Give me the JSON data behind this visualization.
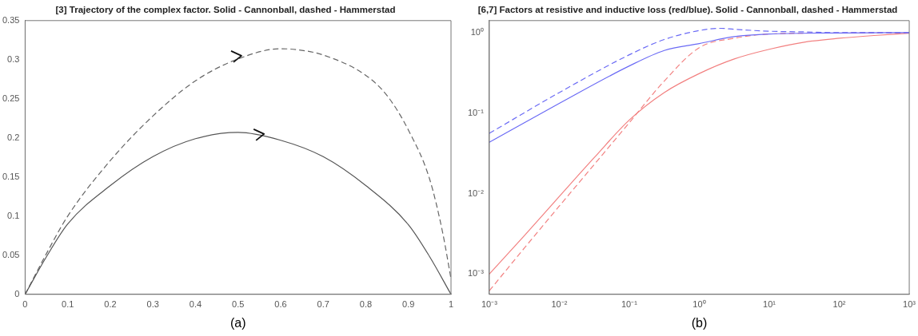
{
  "chart_data": [
    {
      "type": "line",
      "title": "[3] Trajectory of the complex factor. Solid - Cannonball, dashed - Hammerstad",
      "annotations": [
        "(a)"
      ],
      "xlim": [
        0,
        1
      ],
      "ylim": [
        0,
        0.35
      ],
      "xticks": [
        0,
        0.1,
        0.2,
        0.3,
        0.4,
        0.5,
        0.6,
        0.7,
        0.8,
        0.9,
        1
      ],
      "yticks": [
        0,
        0.05,
        0.1,
        0.15,
        0.2,
        0.25,
        0.3,
        0.35
      ],
      "marker": "none",
      "series": [
        {
          "color": "#555555",
          "line_style": "solid",
          "x": [
            0,
            0.05,
            0.1,
            0.2,
            0.3,
            0.4,
            0.5,
            0.6,
            0.7,
            0.8,
            0.9,
            0.95,
            1
          ],
          "values": [
            0,
            0.048,
            0.09,
            0.139,
            0.176,
            0.199,
            0.207,
            0.197,
            0.176,
            0.139,
            0.089,
            0.048,
            0
          ]
        },
        {
          "color": "#666666",
          "line_style": "dashed",
          "x": [
            0,
            0.05,
            0.1,
            0.2,
            0.3,
            0.4,
            0.5,
            0.6,
            0.65,
            0.7,
            0.8,
            0.85,
            0.9,
            0.95,
            0.98,
            1
          ],
          "values": [
            0,
            0.052,
            0.1,
            0.171,
            0.228,
            0.273,
            0.301,
            0.314,
            0.312,
            0.306,
            0.28,
            0.254,
            0.21,
            0.147,
            0.08,
            0.02
          ]
        }
      ]
    },
    {
      "type": "line",
      "title": "[6,7] Factors at resistive and inductive loss (red/blue). Solid - Cannonball, dashed - Hammerstad",
      "annotations": [
        "(b)"
      ],
      "log": "xy",
      "xlim": [
        0.001,
        1000
      ],
      "ylim": [
        0.00056,
        1.41
      ],
      "xticks": [
        {
          "value": 0.001,
          "label": "10⁻³"
        },
        {
          "value": 0.01,
          "label": "10⁻²"
        },
        {
          "value": 0.1,
          "label": "10⁻¹"
        },
        {
          "value": 1,
          "label": "10⁰"
        },
        {
          "value": 10,
          "label": "10¹"
        },
        {
          "value": 100,
          "label": "10²"
        },
        {
          "value": 1000,
          "label": "10³"
        }
      ],
      "yticks": [
        {
          "value": 0.001,
          "label": "10⁻³"
        },
        {
          "value": 0.01,
          "label": "10⁻²"
        },
        {
          "value": 0.1,
          "label": "10⁻¹"
        },
        {
          "value": 1,
          "label": "10⁰"
        }
      ],
      "marker": "none",
      "series": [
        {
          "color": "#6b6bf5",
          "line_style": "solid",
          "x": [
            0.001,
            0.01,
            0.1,
            0.316,
            1,
            3.16,
            10,
            100,
            1000
          ],
          "values": [
            0.0434,
            0.132,
            0.385,
            0.6,
            0.73,
            0.89,
            0.96,
            0.99,
            1
          ]
        },
        {
          "color": "#6b6bf5",
          "line_style": "dashed",
          "x": [
            0.001,
            0.01,
            0.1,
            0.316,
            1,
            2,
            3.16,
            10,
            31.6,
            100,
            1000
          ],
          "values": [
            0.056,
            0.18,
            0.53,
            0.82,
            1.06,
            1.13,
            1.1,
            1.04,
            1.02,
            1,
            1
          ]
        },
        {
          "color": "#f28080",
          "line_style": "solid",
          "x": [
            0.001,
            0.00316,
            0.01,
            0.0316,
            0.1,
            0.316,
            1,
            3.16,
            10,
            31.6,
            100,
            316,
            1000
          ],
          "values": [
            0.001,
            0.003,
            0.0092,
            0.028,
            0.082,
            0.18,
            0.31,
            0.47,
            0.62,
            0.76,
            0.85,
            0.92,
            0.98
          ]
        },
        {
          "color": "#f28080",
          "line_style": "dashed",
          "x": [
            0.001,
            0.00316,
            0.01,
            0.0316,
            0.1,
            0.316,
            1,
            3.16,
            10,
            100,
            1000
          ],
          "values": [
            0.00062,
            0.0021,
            0.007,
            0.023,
            0.076,
            0.25,
            0.65,
            0.85,
            0.96,
            0.99,
            1
          ]
        }
      ]
    }
  ]
}
